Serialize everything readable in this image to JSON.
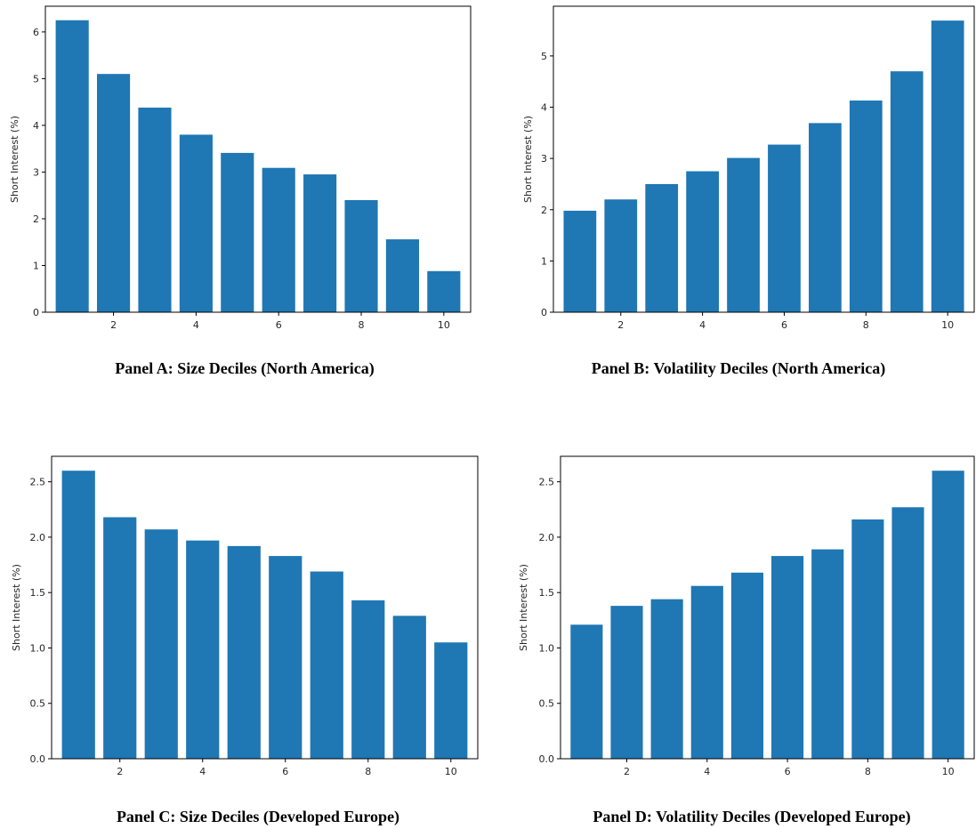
{
  "chart_data": [
    {
      "type": "bar",
      "caption": "Panel A: Size Deciles (North America)",
      "ylabel": "Short Interest (%)",
      "x": [
        1,
        2,
        3,
        4,
        5,
        6,
        7,
        8,
        9,
        10
      ],
      "values": [
        6.25,
        5.1,
        4.38,
        3.8,
        3.41,
        3.09,
        2.95,
        2.4,
        1.56,
        0.88
      ],
      "xticks": [
        "2",
        "4",
        "6",
        "8",
        "10"
      ],
      "yticks": [
        "0",
        "1",
        "2",
        "3",
        "4",
        "5",
        "6"
      ],
      "ylim": [
        0,
        6.55
      ],
      "bar_color": "#1f77b4"
    },
    {
      "type": "bar",
      "caption": "Panel B: Volatility Deciles (North America)",
      "ylabel": "Short Interest (%)",
      "x": [
        1,
        2,
        3,
        4,
        5,
        6,
        7,
        8,
        9,
        10
      ],
      "values": [
        1.98,
        2.2,
        2.5,
        2.75,
        3.01,
        3.27,
        3.69,
        4.13,
        4.7,
        5.69
      ],
      "xticks": [
        "2",
        "4",
        "6",
        "8",
        "10"
      ],
      "yticks": [
        "0",
        "1",
        "2",
        "3",
        "4",
        "5"
      ],
      "ylim": [
        0,
        5.97
      ],
      "bar_color": "#1f77b4"
    },
    {
      "type": "bar",
      "caption": "Panel C: Size Deciles (Developed Europe)",
      "ylabel": "Short Interest (%)",
      "x": [
        1,
        2,
        3,
        4,
        5,
        6,
        7,
        8,
        9,
        10
      ],
      "values": [
        2.6,
        2.18,
        2.07,
        1.97,
        1.92,
        1.83,
        1.69,
        1.43,
        1.29,
        1.05
      ],
      "xticks": [
        "2",
        "4",
        "6",
        "8",
        "10"
      ],
      "yticks": [
        "0.0",
        "0.5",
        "1.0",
        "1.5",
        "2.0",
        "2.5"
      ],
      "ylim": [
        0,
        2.73
      ],
      "bar_color": "#1f77b4"
    },
    {
      "type": "bar",
      "caption": "Panel D: Volatility Deciles (Developed Europe)",
      "ylabel": "Short Interest (%)",
      "x": [
        1,
        2,
        3,
        4,
        5,
        6,
        7,
        8,
        9,
        10
      ],
      "values": [
        1.21,
        1.38,
        1.44,
        1.56,
        1.68,
        1.83,
        1.89,
        2.16,
        2.27,
        2.6
      ],
      "xticks": [
        "2",
        "4",
        "6",
        "8",
        "10"
      ],
      "yticks": [
        "0.0",
        "0.5",
        "1.0",
        "1.5",
        "2.0",
        "2.5"
      ],
      "ylim": [
        0,
        2.73
      ],
      "bar_color": "#1f77b4"
    }
  ]
}
